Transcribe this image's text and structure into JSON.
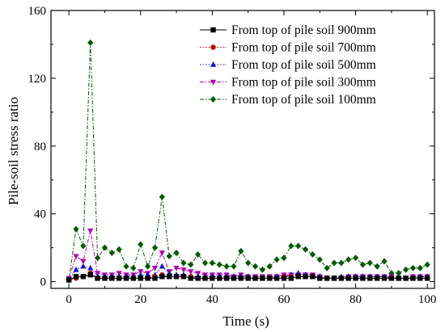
{
  "chart_data": {
    "type": "line",
    "title": "",
    "xlabel": "Time (s)",
    "ylabel": "Pile-soil stress ratio",
    "xlim": [
      -5,
      102
    ],
    "ylim": [
      -4,
      160
    ],
    "xticks": [
      0,
      20,
      40,
      60,
      80,
      100
    ],
    "yticks": [
      0,
      40,
      80,
      120,
      160
    ],
    "xtick_labels": [
      "0",
      "20",
      "40",
      "60",
      "80",
      "100"
    ],
    "ytick_labels": [
      "0",
      "40",
      "80",
      "120",
      "160"
    ],
    "legend_position": "top-right",
    "grid": false,
    "x": [
      0,
      2,
      4,
      6,
      8,
      10,
      12,
      14,
      16,
      18,
      20,
      22,
      24,
      26,
      28,
      30,
      32,
      34,
      36,
      38,
      40,
      42,
      44,
      46,
      48,
      50,
      52,
      54,
      56,
      58,
      60,
      62,
      64,
      66,
      68,
      70,
      72,
      74,
      76,
      78,
      80,
      82,
      84,
      86,
      88,
      90,
      92,
      94,
      96,
      98,
      100
    ],
    "series": [
      {
        "name": "From top of pile soil 900mm",
        "color": "#000000",
        "marker": "square",
        "line_style": "solid",
        "values": [
          1,
          3,
          3,
          4,
          2,
          2,
          2,
          2,
          2,
          2,
          2,
          2,
          2,
          3,
          3,
          3,
          3,
          2,
          2,
          2,
          2,
          2,
          2,
          2,
          2,
          2,
          2,
          2,
          2,
          2,
          2,
          2,
          3,
          3,
          3,
          2,
          2,
          2,
          2,
          2,
          2,
          2,
          2,
          2,
          2,
          2,
          2,
          2,
          2,
          2,
          2
        ]
      },
      {
        "name": "From top of pile soil 700mm",
        "color": "#c00000",
        "marker": "circle",
        "line_style": "dotted",
        "values": [
          1,
          2,
          3,
          5,
          2,
          2,
          2,
          2,
          2,
          2,
          2,
          2,
          3,
          4,
          3,
          3,
          3,
          3,
          2,
          2,
          2,
          2,
          2,
          2,
          2,
          2,
          2,
          2,
          2,
          2,
          3,
          3,
          3,
          3,
          3,
          2,
          2,
          2,
          2,
          2,
          2,
          2,
          2,
          2,
          2,
          2,
          2,
          2,
          2,
          2,
          2
        ]
      },
      {
        "name": "From top of pile soil 500mm",
        "color": "#1414d2",
        "marker": "triangle-up",
        "line_style": "dotted",
        "values": [
          1,
          7,
          9,
          8,
          3,
          3,
          3,
          3,
          3,
          3,
          4,
          4,
          4,
          9,
          5,
          4,
          4,
          3,
          3,
          3,
          3,
          3,
          3,
          3,
          3,
          3,
          2,
          2,
          2,
          3,
          3,
          4,
          5,
          4,
          3,
          3,
          2,
          2,
          3,
          3,
          3,
          3,
          3,
          3,
          3,
          2,
          2,
          2,
          2,
          3,
          3
        ]
      },
      {
        "name": "From top of pile soil 300mm",
        "color": "#b400b4",
        "marker": "triangle-down",
        "line_style": "dashdot",
        "values": [
          2,
          15,
          12,
          30,
          5,
          4,
          4,
          5,
          4,
          4,
          6,
          5,
          8,
          17,
          6,
          8,
          7,
          6,
          5,
          4,
          4,
          4,
          4,
          3,
          4,
          3,
          3,
          3,
          3,
          3,
          4,
          4,
          4,
          4,
          4,
          3,
          2,
          2,
          2,
          3,
          3,
          3,
          3,
          3,
          3,
          3,
          2,
          2,
          3,
          3,
          3
        ]
      },
      {
        "name": "From top of pile soil 100mm",
        "color": "#005a00",
        "marker": "diamond",
        "line_style": "dashdot",
        "values": [
          1,
          31,
          21,
          141,
          14,
          20,
          17,
          19,
          9,
          8,
          22,
          9,
          20,
          50,
          15,
          17,
          11,
          10,
          16,
          11,
          11,
          10,
          9,
          9,
          18,
          11,
          9,
          7,
          9,
          13,
          14,
          21,
          21,
          19,
          16,
          13,
          8,
          11,
          11,
          13,
          14,
          10,
          11,
          9,
          12,
          5,
          5,
          7,
          8,
          8,
          10
        ]
      }
    ]
  }
}
